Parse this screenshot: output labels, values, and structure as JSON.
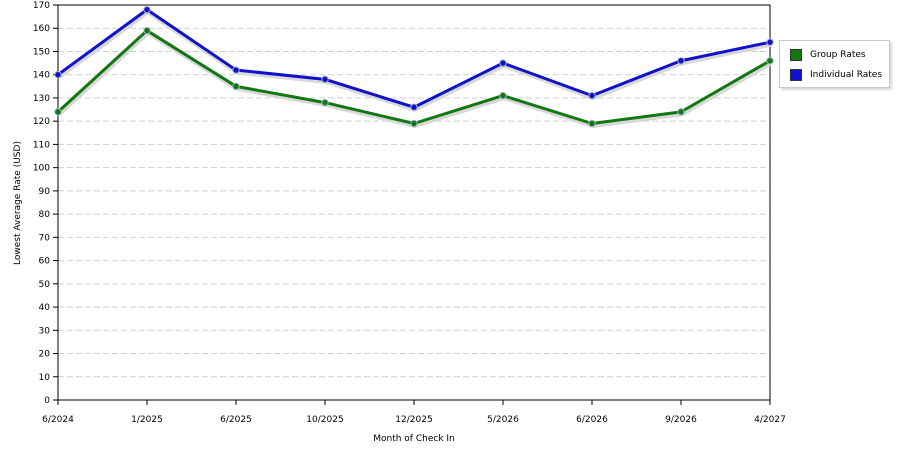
{
  "chart_data": {
    "type": "line",
    "title": "",
    "xlabel": "Month of Check In",
    "ylabel": "Lowest Average Rate (USD)",
    "categories": [
      "6/2024",
      "1/2025",
      "6/2025",
      "10/2025",
      "12/2025",
      "5/2026",
      "6/2026",
      "9/2026",
      "4/2027"
    ],
    "ylim": [
      0,
      170
    ],
    "yticks": [
      0,
      10,
      20,
      30,
      40,
      50,
      60,
      70,
      80,
      90,
      100,
      110,
      120,
      130,
      140,
      150,
      160,
      170
    ],
    "grid": true,
    "legend_position": "right",
    "series": [
      {
        "name": "Group Rates",
        "color": "#117711",
        "values": [
          124,
          159,
          135,
          128,
          119,
          131,
          119,
          124,
          146
        ]
      },
      {
        "name": "Individual Rates",
        "color": "#1111cc",
        "values": [
          140,
          168,
          142,
          138,
          126,
          145,
          131,
          146,
          154
        ]
      }
    ]
  }
}
